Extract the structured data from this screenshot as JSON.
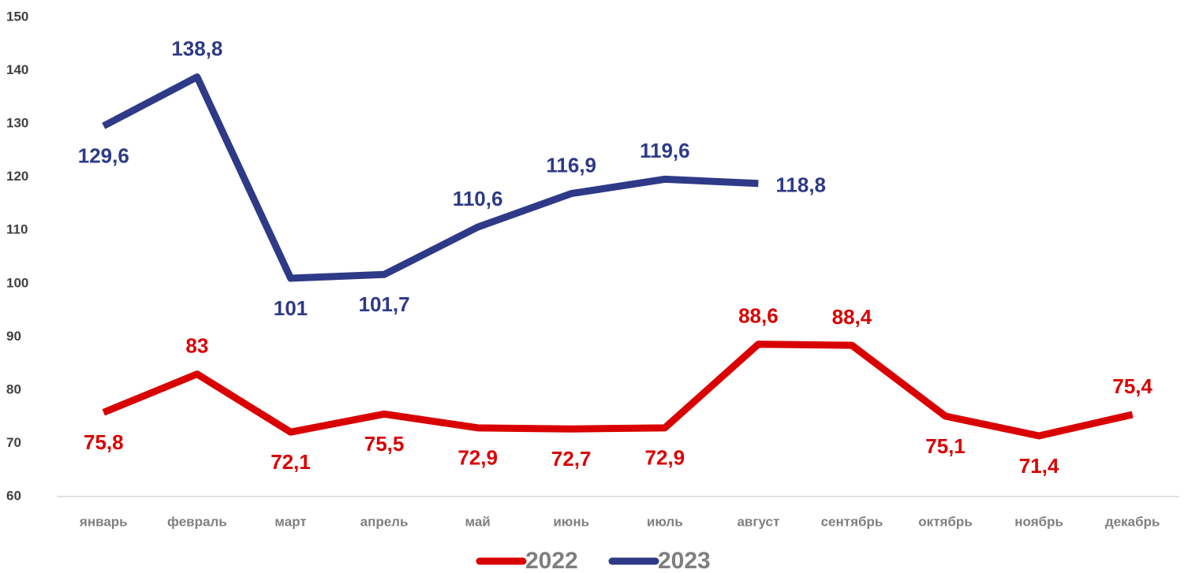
{
  "chart_data": {
    "type": "line",
    "categories": [
      "январь",
      "февраль",
      "март",
      "апрель",
      "май",
      "июнь",
      "июль",
      "август",
      "сентябрь",
      "октябрь",
      "ноябрь",
      "декабрь"
    ],
    "series": [
      {
        "name": "2022",
        "color": "#d90000",
        "values": [
          75.8,
          83,
          72.1,
          75.5,
          72.9,
          72.7,
          72.9,
          88.6,
          88.4,
          75.1,
          71.4,
          75.4
        ],
        "value_labels": [
          "75,8",
          "83",
          "72,1",
          "75,5",
          "72,9",
          "72,7",
          "72,9",
          "88,6",
          "88,4",
          "75,1",
          "71,4",
          "75,4"
        ]
      },
      {
        "name": "2023",
        "color": "#2e3a87",
        "values": [
          129.6,
          138.8,
          101,
          101.7,
          110.6,
          116.9,
          119.6,
          118.8,
          null,
          null,
          null,
          null
        ],
        "value_labels": [
          "129,6",
          "138,8",
          "101",
          "101,7",
          "110,6",
          "116,9",
          "119,6",
          "118,8",
          null,
          null,
          null,
          null
        ]
      }
    ],
    "ylim": [
      60,
      150
    ],
    "yticks": [
      60,
      70,
      80,
      90,
      100,
      110,
      120,
      130,
      140,
      150
    ],
    "grid": false,
    "legend": "bottom"
  }
}
